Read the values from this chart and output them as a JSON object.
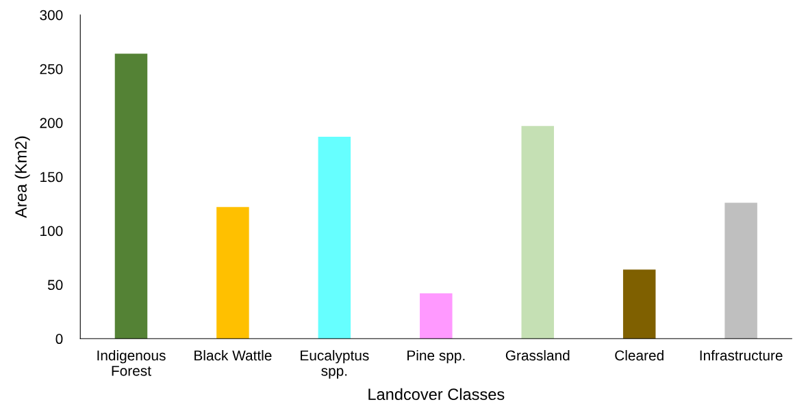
{
  "chart_data": {
    "type": "bar",
    "xlabel": "Landcover Classes",
    "ylabel": "Area (Km2)",
    "categories": [
      "Indigenous\nForest",
      "Black Wattle",
      "Eucalyptus\nspp.",
      "Pine spp.",
      "Grassland",
      "Cleared",
      "Infrastructure"
    ],
    "values": [
      264,
      122,
      187,
      42,
      197,
      64,
      126
    ],
    "colors": [
      "#548235",
      "#ffc000",
      "#66ffff",
      "#ff99ff",
      "#c5e0b4",
      "#7f6000",
      "#bfbfbf"
    ],
    "ylim": [
      0,
      300
    ],
    "yticks": [
      0,
      50,
      100,
      150,
      200,
      250,
      300
    ],
    "grid": false,
    "legend": false
  }
}
